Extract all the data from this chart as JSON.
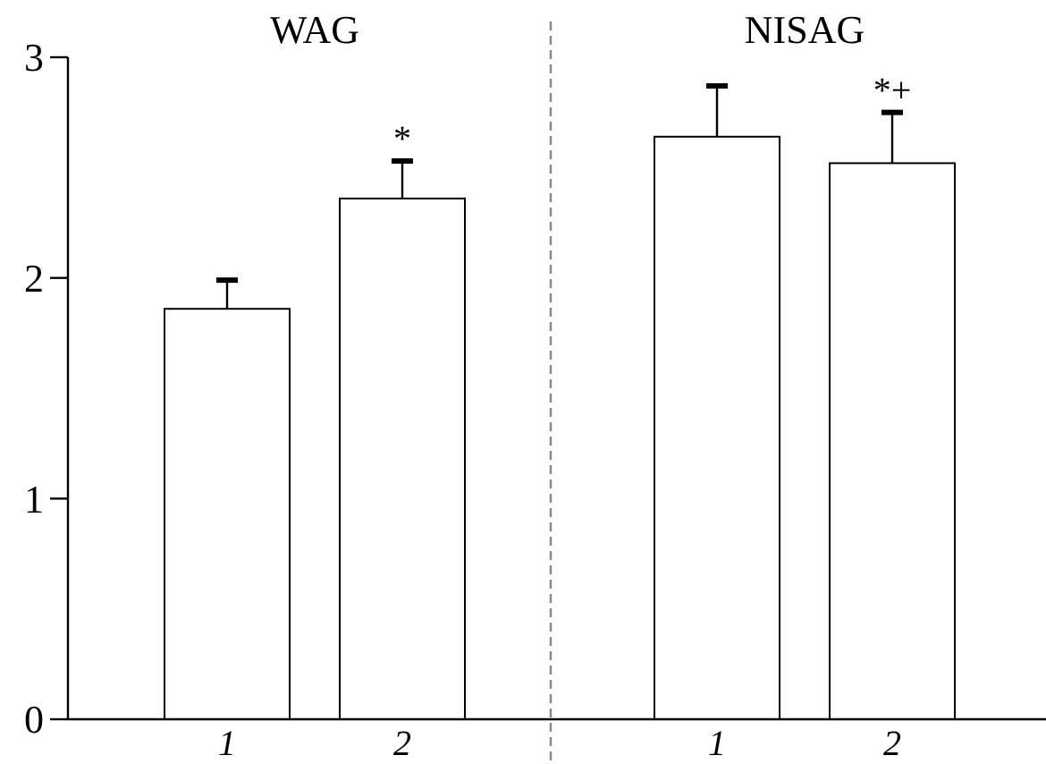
{
  "chart_data": {
    "type": "bar",
    "categories": [
      "1",
      "2",
      "1",
      "2"
    ],
    "values": [
      1.86,
      2.36,
      2.64,
      2.52
    ],
    "errors": [
      [
        1.86,
        1.99
      ],
      [
        2.36,
        2.53
      ],
      [
        2.64,
        2.87
      ],
      [
        2.52,
        2.75
      ]
    ],
    "color": "#ffffff",
    "ylim": [
      0,
      3
    ],
    "yticks": [
      0,
      1,
      2,
      3
    ],
    "grid": false,
    "annotations": [
      "WAG",
      "NISAG",
      "*",
      "*+"
    ]
  }
}
